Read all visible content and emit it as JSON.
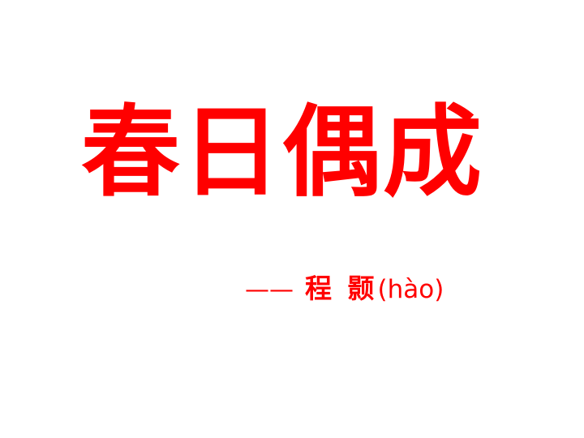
{
  "slide": {
    "title": "春日偶成",
    "byline": {
      "dash": "——",
      "author": "程 颢",
      "pinyin": "(hào)"
    },
    "colors": {
      "text": "#ff0000",
      "background": "#ffffff"
    }
  }
}
